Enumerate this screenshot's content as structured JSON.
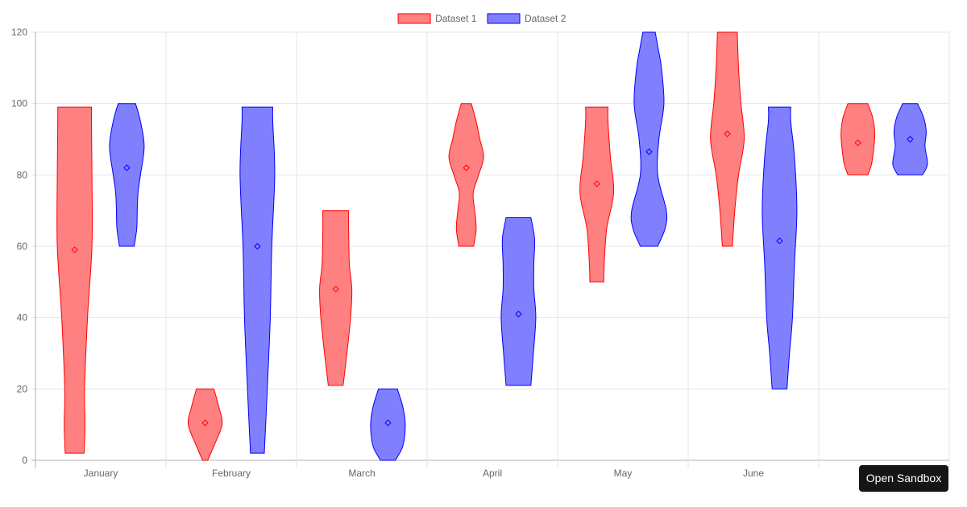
{
  "chart_data": {
    "type": "violin",
    "categories": [
      "January",
      "February",
      "March",
      "April",
      "May",
      "June",
      ""
    ],
    "ylim": [
      0,
      120
    ],
    "yticks": [
      0,
      20,
      40,
      60,
      80,
      100,
      120
    ],
    "grid": true,
    "legend_position": "top-center",
    "series": [
      {
        "name": "Dataset 1",
        "fill": "#ff8080",
        "stroke": "#ff0000",
        "marker": "#ff0000",
        "violins": [
          {
            "min": 2,
            "max": 99,
            "mean": 59,
            "profile": [
              [
                2,
                0.38
              ],
              [
                10,
                0.42
              ],
              [
                20,
                0.4
              ],
              [
                40,
                0.52
              ],
              [
                60,
                0.7
              ],
              [
                80,
                0.7
              ],
              [
                95,
                0.68
              ],
              [
                99,
                0.68
              ]
            ]
          },
          {
            "min": 0,
            "max": 20,
            "mean": 10.5,
            "profile": [
              [
                0,
                0.1
              ],
              [
                4,
                0.35
              ],
              [
                10,
                0.68
              ],
              [
                15,
                0.55
              ],
              [
                20,
                0.35
              ]
            ]
          },
          {
            "min": 21,
            "max": 70,
            "mean": 48,
            "profile": [
              [
                21,
                0.3
              ],
              [
                30,
                0.45
              ],
              [
                40,
                0.6
              ],
              [
                48,
                0.65
              ],
              [
                55,
                0.55
              ],
              [
                65,
                0.52
              ],
              [
                70,
                0.52
              ]
            ]
          },
          {
            "min": 60,
            "max": 100,
            "mean": 82,
            "profile": [
              [
                60,
                0.3
              ],
              [
                65,
                0.4
              ],
              [
                70,
                0.34
              ],
              [
                75,
                0.28
              ],
              [
                80,
                0.5
              ],
              [
                85,
                0.7
              ],
              [
                90,
                0.55
              ],
              [
                95,
                0.4
              ],
              [
                100,
                0.2
              ]
            ]
          },
          {
            "min": 50,
            "max": 99,
            "mean": 77.5,
            "profile": [
              [
                50,
                0.28
              ],
              [
                55,
                0.3
              ],
              [
                65,
                0.4
              ],
              [
                75,
                0.68
              ],
              [
                85,
                0.55
              ],
              [
                95,
                0.45
              ],
              [
                99,
                0.45
              ]
            ]
          },
          {
            "min": 60,
            "max": 120,
            "mean": 91.5,
            "profile": [
              [
                60,
                0.2
              ],
              [
                70,
                0.3
              ],
              [
                80,
                0.45
              ],
              [
                90,
                0.68
              ],
              [
                100,
                0.55
              ],
              [
                110,
                0.45
              ],
              [
                120,
                0.4
              ]
            ]
          },
          {
            "min": 80,
            "max": 100,
            "mean": 89,
            "profile": [
              [
                80,
                0.4
              ],
              [
                83,
                0.55
              ],
              [
                88,
                0.65
              ],
              [
                92,
                0.68
              ],
              [
                96,
                0.6
              ],
              [
                100,
                0.4
              ]
            ]
          }
        ]
      },
      {
        "name": "Dataset 2",
        "fill": "#8080ff",
        "stroke": "#0000ff",
        "marker": "#0000ff",
        "violins": [
          {
            "min": 60,
            "max": 100,
            "mean": 82,
            "profile": [
              [
                60,
                0.3
              ],
              [
                65,
                0.4
              ],
              [
                70,
                0.42
              ],
              [
                75,
                0.45
              ],
              [
                80,
                0.55
              ],
              [
                88,
                0.7
              ],
              [
                95,
                0.55
              ],
              [
                100,
                0.35
              ]
            ]
          },
          {
            "min": 2,
            "max": 99,
            "mean": 60,
            "profile": [
              [
                2,
                0.28
              ],
              [
                20,
                0.4
              ],
              [
                40,
                0.52
              ],
              [
                60,
                0.58
              ],
              [
                80,
                0.7
              ],
              [
                95,
                0.62
              ],
              [
                99,
                0.62
              ]
            ]
          },
          {
            "min": 0,
            "max": 20,
            "mean": 10.5,
            "profile": [
              [
                0,
                0.3
              ],
              [
                4,
                0.6
              ],
              [
                10,
                0.7
              ],
              [
                15,
                0.6
              ],
              [
                20,
                0.38
              ]
            ]
          },
          {
            "min": 21,
            "max": 68,
            "mean": 41,
            "profile": [
              [
                21,
                0.5
              ],
              [
                30,
                0.6
              ],
              [
                40,
                0.7
              ],
              [
                48,
                0.62
              ],
              [
                55,
                0.62
              ],
              [
                62,
                0.65
              ],
              [
                68,
                0.5
              ]
            ]
          },
          {
            "min": 60,
            "max": 120,
            "mean": 86.5,
            "profile": [
              [
                60,
                0.35
              ],
              [
                65,
                0.65
              ],
              [
                70,
                0.7
              ],
              [
                80,
                0.35
              ],
              [
                90,
                0.4
              ],
              [
                100,
                0.6
              ],
              [
                110,
                0.5
              ],
              [
                115,
                0.38
              ],
              [
                120,
                0.25
              ]
            ]
          },
          {
            "min": 20,
            "max": 99,
            "mean": 61.5,
            "profile": [
              [
                20,
                0.3
              ],
              [
                30,
                0.4
              ],
              [
                40,
                0.52
              ],
              [
                55,
                0.6
              ],
              [
                70,
                0.7
              ],
              [
                85,
                0.6
              ],
              [
                95,
                0.45
              ],
              [
                99,
                0.45
              ]
            ]
          },
          {
            "min": 80,
            "max": 100,
            "mean": 90,
            "profile": [
              [
                80,
                0.5
              ],
              [
                83,
                0.7
              ],
              [
                88,
                0.6
              ],
              [
                92,
                0.65
              ],
              [
                96,
                0.55
              ],
              [
                100,
                0.3
              ]
            ]
          }
        ]
      }
    ]
  },
  "legend": {
    "items": [
      {
        "label": "Dataset 1"
      },
      {
        "label": "Dataset 2"
      }
    ]
  },
  "sandbox": {
    "label": "Open Sandbox"
  }
}
